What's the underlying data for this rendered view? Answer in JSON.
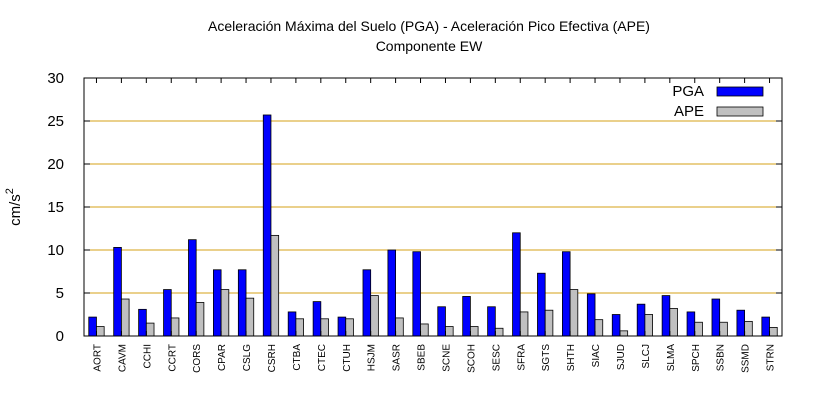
{
  "chart_data": {
    "type": "bar",
    "title": "Aceleración Máxima del Suelo (PGA) -  Aceleración Pico Efectiva (APE)",
    "subtitle": "Componente EW",
    "ylabel": "cm/s",
    "ylabel_sup": "2",
    "xlabel": "",
    "ylim": [
      0,
      30
    ],
    "yticks": [
      0,
      5,
      10,
      15,
      20,
      25,
      30
    ],
    "grid": true,
    "legend_position": "top-right",
    "categories": [
      "AORT",
      "CAVM",
      "CCHI",
      "CCRT",
      "CORS",
      "CPAR",
      "CSLG",
      "CSRH",
      "CTBA",
      "CTEC",
      "CTUH",
      "HSJM",
      "SASR",
      "SBEB",
      "SCNE",
      "SCOH",
      "SESC",
      "SFRA",
      "SGTS",
      "SHTH",
      "SIAC",
      "SJUD",
      "SLCJ",
      "SLMA",
      "SPCH",
      "SSBN",
      "SSMD",
      "STRN"
    ],
    "series": [
      {
        "name": "PGA",
        "color": "#0000ff",
        "values": [
          2.2,
          10.3,
          3.1,
          5.4,
          11.2,
          7.7,
          7.7,
          25.7,
          2.8,
          4.0,
          2.2,
          7.7,
          10.0,
          9.8,
          3.4,
          4.6,
          3.4,
          12.0,
          7.3,
          9.8,
          4.9,
          2.5,
          3.7,
          4.7,
          2.8,
          4.3,
          3.0,
          2.2
        ]
      },
      {
        "name": "APE",
        "color": "#c0c0c0",
        "values": [
          1.1,
          4.3,
          1.5,
          2.1,
          3.9,
          5.4,
          4.4,
          11.7,
          2.0,
          2.0,
          2.0,
          4.7,
          2.1,
          1.4,
          1.1,
          1.1,
          0.9,
          2.8,
          3.0,
          5.4,
          1.9,
          0.6,
          2.5,
          3.2,
          1.6,
          1.6,
          1.7,
          1.0
        ]
      }
    ],
    "colors": {
      "grid": "#d4a017",
      "axis": "#000000"
    }
  }
}
